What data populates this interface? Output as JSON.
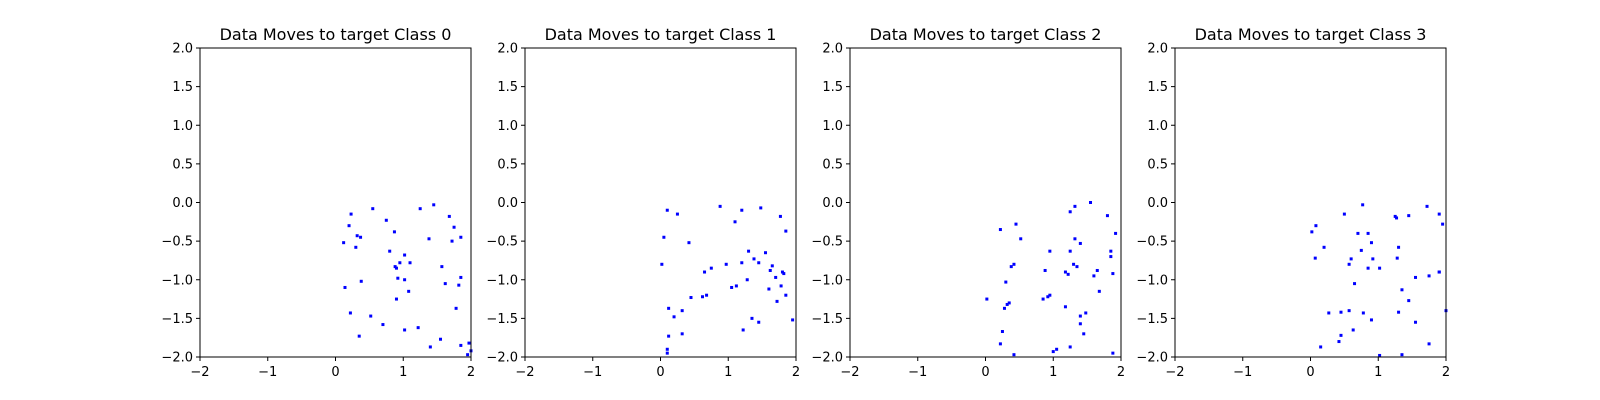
{
  "chart_data": [
    {
      "type": "scatter",
      "title": "Data Moves to target Class 0",
      "xlim": [
        -2,
        2
      ],
      "ylim": [
        -2,
        2
      ],
      "xticks": [
        "−2",
        "−1",
        "0",
        "1",
        "2"
      ],
      "yticks": [
        "2.0",
        "1.5",
        "1.0",
        "0.5",
        "0.0",
        "−0.5",
        "−1.0",
        "−1.5",
        "−2.0"
      ],
      "grid": false,
      "marker_color": "#0000ff",
      "series": [
        {
          "x": [
            0.32,
            0.55,
            0.23,
            0.75,
            0.87,
            1.1,
            1.25,
            1.45,
            1.68,
            1.75,
            1.85,
            0.12,
            0.37,
            0.3,
            0.2,
            0.95,
            0.8,
            0.9,
            1.02,
            0.88,
            1.38,
            1.57,
            1.72,
            0.92,
            1.62,
            1.85,
            1.02,
            0.9,
            1.08,
            0.38,
            0.14,
            1.82,
            1.78,
            0.52,
            0.7,
            0.22,
            1.22,
            1.02,
            0.35,
            1.55,
            1.4,
            1.85,
            1.97,
            2.0,
            1.95
          ],
          "y": [
            -0.43,
            -0.08,
            -0.15,
            -0.23,
            -0.38,
            -0.78,
            -0.08,
            -0.03,
            -0.18,
            -0.32,
            -0.45,
            -0.52,
            -0.45,
            -0.58,
            -0.3,
            -0.78,
            -0.63,
            -0.85,
            -0.68,
            -0.83,
            -0.47,
            -0.83,
            -0.5,
            -0.98,
            -1.05,
            -0.97,
            -1.0,
            -1.25,
            -1.15,
            -1.02,
            -1.1,
            -1.07,
            -1.37,
            -1.47,
            -1.58,
            -1.43,
            -1.62,
            -1.65,
            -1.73,
            -1.77,
            -1.87,
            -1.85,
            -1.82,
            -1.92,
            -1.97
          ]
        }
      ]
    },
    {
      "type": "scatter",
      "title": "Data Moves to target Class 1",
      "xlim": [
        -2,
        2
      ],
      "ylim": [
        -2,
        2
      ],
      "xticks": [
        "−2",
        "−1",
        "0",
        "1",
        "2"
      ],
      "yticks": [
        "2.0",
        "1.5",
        "1.0",
        "0.5",
        "0.0",
        "−0.5",
        "−1.0",
        "−1.5",
        "−2.0"
      ],
      "grid": false,
      "marker_color": "#0000ff",
      "series": [
        {
          "x": [
            0.25,
            0.1,
            0.88,
            1.2,
            1.48,
            1.77,
            1.1,
            1.85,
            0.05,
            0.42,
            1.3,
            0.75,
            0.65,
            1.2,
            1.38,
            1.45,
            1.55,
            0.02,
            0.97,
            1.62,
            1.7,
            1.82,
            1.8,
            1.05,
            1.12,
            1.28,
            1.6,
            1.78,
            1.85,
            0.68,
            0.62,
            0.45,
            0.2,
            0.32,
            0.12,
            1.72,
            1.45,
            1.35,
            1.95,
            1.22,
            0.12,
            0.32,
            0.1,
            0.1,
            1.65
          ],
          "y": [
            -0.15,
            -0.1,
            -0.05,
            -0.1,
            -0.07,
            -0.18,
            -0.25,
            -0.37,
            -0.45,
            -0.52,
            -0.63,
            -0.85,
            -0.9,
            -0.78,
            -0.73,
            -0.78,
            -0.65,
            -0.8,
            -0.8,
            -0.88,
            -0.97,
            -0.92,
            -0.9,
            -1.1,
            -1.08,
            -1.0,
            -1.12,
            -1.08,
            -1.2,
            -1.2,
            -1.22,
            -1.23,
            -1.48,
            -1.4,
            -1.37,
            -1.28,
            -1.55,
            -1.5,
            -1.52,
            -1.65,
            -1.73,
            -1.7,
            -1.9,
            -1.95,
            -0.82
          ]
        }
      ]
    },
    {
      "type": "scatter",
      "title": "Data Moves to target Class 2",
      "xlim": [
        -2,
        2
      ],
      "ylim": [
        -2,
        2
      ],
      "xticks": [
        "−2",
        "−1",
        "0",
        "1",
        "2"
      ],
      "yticks": [
        "2.0",
        "1.5",
        "1.0",
        "0.5",
        "0.0",
        "−0.5",
        "−1.0",
        "−1.5",
        "−2.0"
      ],
      "grid": false,
      "marker_color": "#0000ff",
      "series": [
        {
          "x": [
            1.55,
            1.8,
            1.32,
            1.25,
            0.45,
            0.22,
            1.92,
            0.52,
            1.32,
            1.4,
            1.85,
            1.25,
            1.65,
            1.88,
            1.85,
            0.95,
            1.3,
            0.42,
            0.38,
            0.88,
            1.18,
            1.6,
            1.35,
            0.3,
            1.22,
            0.95,
            0.32,
            0.85,
            0.92,
            0.02,
            0.35,
            0.28,
            1.18,
            1.68,
            1.48,
            1.4,
            0.25,
            1.25,
            1.45,
            1.0,
            1.88,
            1.05,
            0.42,
            1.4,
            0.22
          ],
          "y": [
            0.0,
            -0.17,
            -0.05,
            -0.12,
            -0.28,
            -0.35,
            -0.4,
            -0.47,
            -0.47,
            -0.53,
            -0.63,
            -0.63,
            -0.88,
            -0.92,
            -0.7,
            -0.63,
            -0.8,
            -0.8,
            -0.83,
            -0.88,
            -0.9,
            -0.95,
            -0.83,
            -1.03,
            -0.93,
            -1.2,
            -1.32,
            -1.25,
            -1.22,
            -1.25,
            -1.3,
            -1.37,
            -1.35,
            -1.15,
            -1.43,
            -1.47,
            -1.67,
            -1.87,
            -1.7,
            -1.93,
            -1.95,
            -1.9,
            -1.97,
            -1.57,
            -1.83
          ]
        }
      ]
    },
    {
      "type": "scatter",
      "title": "Data Moves to target Class 3",
      "xlim": [
        -2,
        2
      ],
      "ylim": [
        -2,
        2
      ],
      "xticks": [
        "−2",
        "−1",
        "0",
        "1",
        "2"
      ],
      "yticks": [
        "2.0",
        "1.5",
        "1.0",
        "0.5",
        "0.0",
        "−0.5",
        "−1.0",
        "−1.5",
        "−2.0"
      ],
      "grid": false,
      "marker_color": "#0000ff",
      "series": [
        {
          "x": [
            0.77,
            1.72,
            1.9,
            0.08,
            0.02,
            0.5,
            1.25,
            1.45,
            1.27,
            0.85,
            0.7,
            0.2,
            1.3,
            0.9,
            1.95,
            1.28,
            1.9,
            0.92,
            0.6,
            0.75,
            0.85,
            0.57,
            1.02,
            0.07,
            0.65,
            1.35,
            1.75,
            1.9,
            1.55,
            1.45,
            1.3,
            2.0,
            0.45,
            0.57,
            0.27,
            0.78,
            0.9,
            1.55,
            1.02,
            0.45,
            0.63,
            0.42,
            0.15,
            1.35,
            1.75
          ],
          "y": [
            -0.03,
            -0.05,
            -0.15,
            -0.3,
            -0.38,
            -0.15,
            -0.18,
            -0.17,
            -0.2,
            -0.4,
            -0.4,
            -0.58,
            -0.58,
            -0.52,
            -0.28,
            -0.72,
            -0.9,
            -0.73,
            -0.73,
            -0.62,
            -0.85,
            -0.8,
            -0.85,
            -0.72,
            -1.05,
            -1.13,
            -0.95,
            -0.9,
            -0.97,
            -1.27,
            -1.42,
            -1.4,
            -1.42,
            -1.4,
            -1.43,
            -1.43,
            -1.52,
            -1.55,
            -1.98,
            -1.72,
            -1.65,
            -1.8,
            -1.87,
            -1.97,
            -1.83
          ]
        }
      ]
    }
  ]
}
